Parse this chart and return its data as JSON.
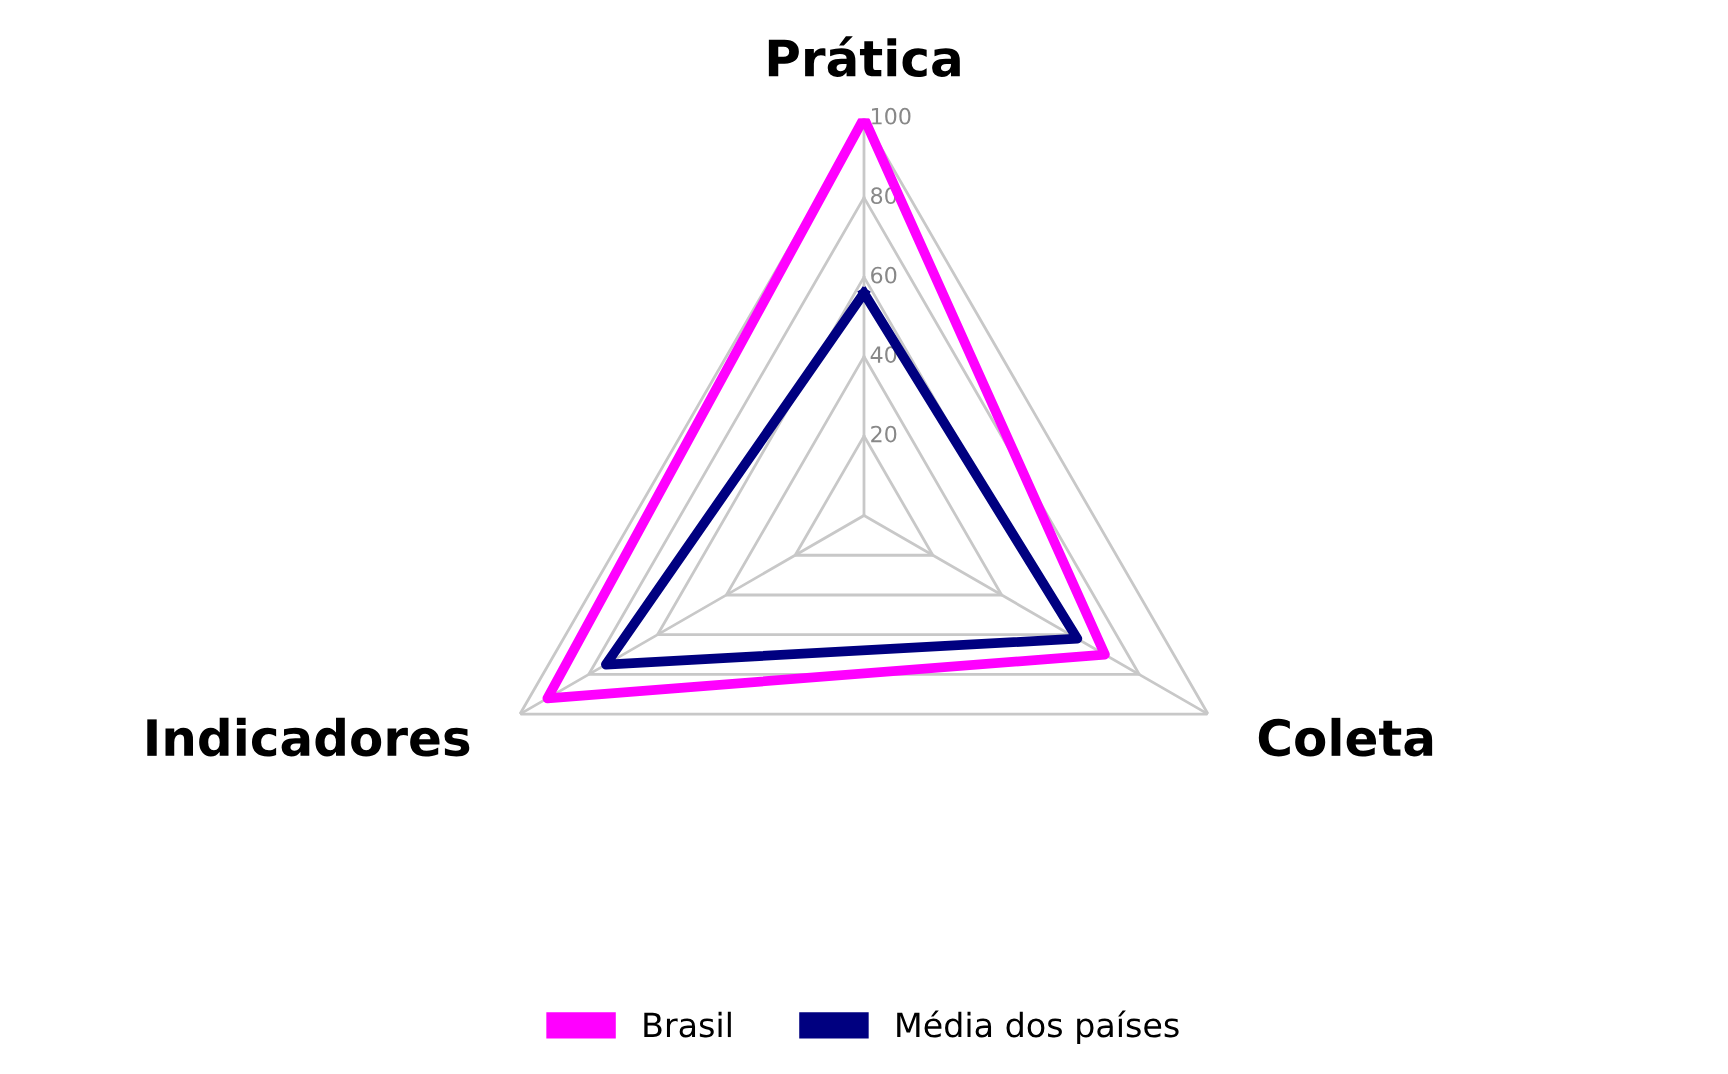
{
  "chart_data": {
    "type": "radar",
    "categories": [
      "Prática",
      "Coleta",
      "Indicadores"
    ],
    "series": [
      {
        "name": "Brasil",
        "color": "#ff00ff",
        "values": [
          100,
          70,
          92
        ]
      },
      {
        "name": "Média dos países",
        "color": "#000080",
        "values": [
          56,
          62,
          75
        ]
      }
    ],
    "ylim": [
      0,
      100
    ],
    "yticks": [
      20,
      40,
      60,
      80,
      100
    ],
    "grid": true,
    "legend": "bottom",
    "marker": "none",
    "line_style": "solid"
  }
}
